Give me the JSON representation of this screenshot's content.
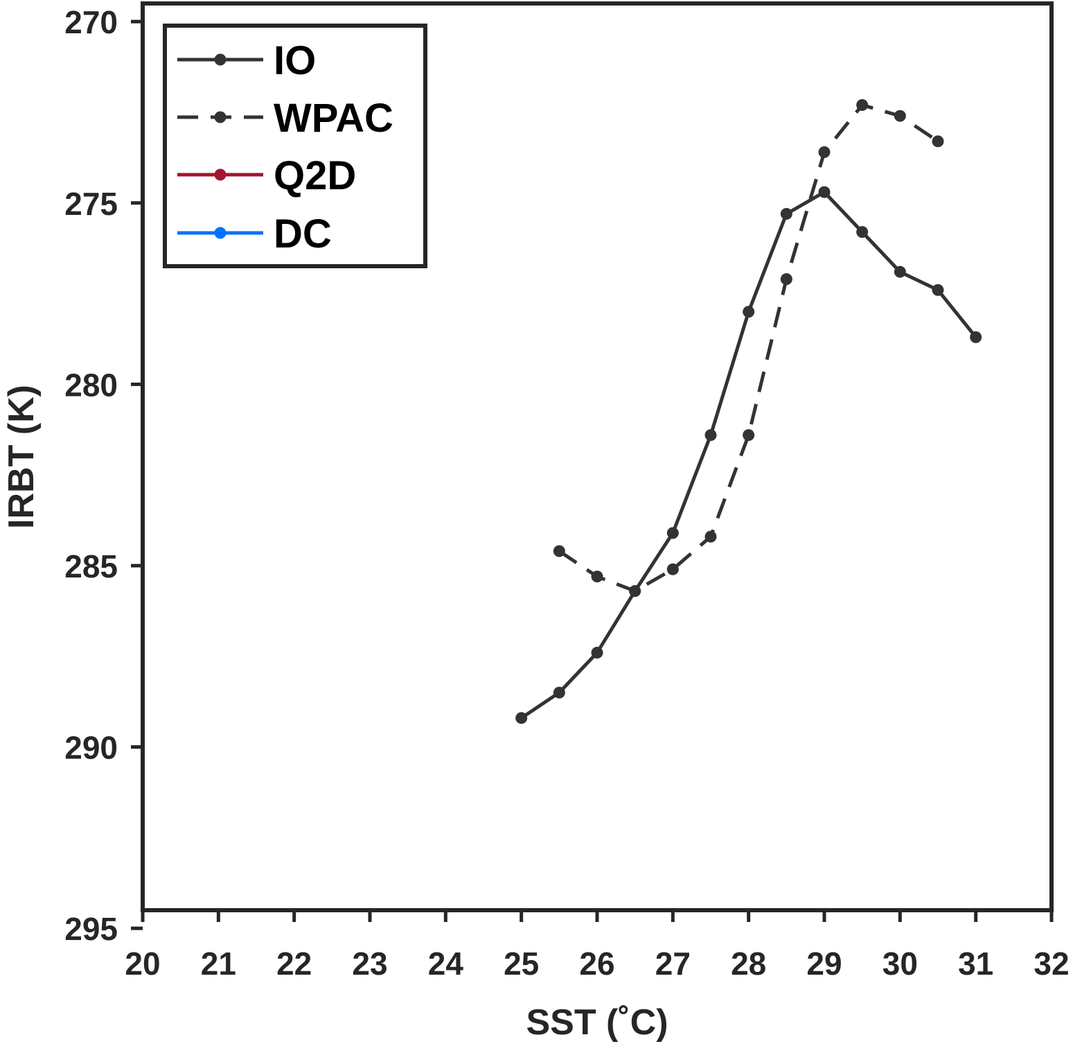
{
  "chart_data": {
    "type": "line",
    "xlabel": "SST (˚C)",
    "ylabel": "IRBT (K)",
    "xlim": [
      20,
      32
    ],
    "ylim": [
      294.5,
      269.5
    ],
    "y_axis_reversed": true,
    "grid": false,
    "legend_position": "top-left",
    "x_ticks": [
      "20",
      "21",
      "22",
      "23",
      "24",
      "25",
      "26",
      "27",
      "28",
      "29",
      "30",
      "31",
      "32"
    ],
    "y_ticks": [
      "270",
      "275",
      "280",
      "285",
      "290",
      "295"
    ],
    "series": [
      {
        "name": "IO",
        "color": "#333333",
        "line_style": "solid",
        "x": [
          25,
          25.5,
          26,
          26.5,
          27,
          27.5,
          28,
          28.5,
          29,
          29.5,
          30,
          30.5,
          31
        ],
        "y": [
          289.2,
          288.5,
          287.4,
          285.7,
          284.1,
          281.4,
          278.0,
          275.3,
          274.7,
          275.8,
          276.9,
          277.4,
          278.7
        ]
      },
      {
        "name": "WPAC",
        "color": "#333333",
        "line_style": "dashed",
        "x": [
          25.5,
          26,
          26.5,
          27,
          27.5,
          28,
          28.5,
          29,
          29.5,
          30,
          30.5
        ],
        "y": [
          284.6,
          285.3,
          285.7,
          285.1,
          284.2,
          281.4,
          277.1,
          273.6,
          272.3,
          272.6,
          273.3
        ]
      },
      {
        "name": "Q2D",
        "color": "#a2142f",
        "line_style": "solid",
        "x": [],
        "y": []
      },
      {
        "name": "DC",
        "color": "#0072ff",
        "line_style": "solid",
        "x": [],
        "y": []
      }
    ]
  }
}
